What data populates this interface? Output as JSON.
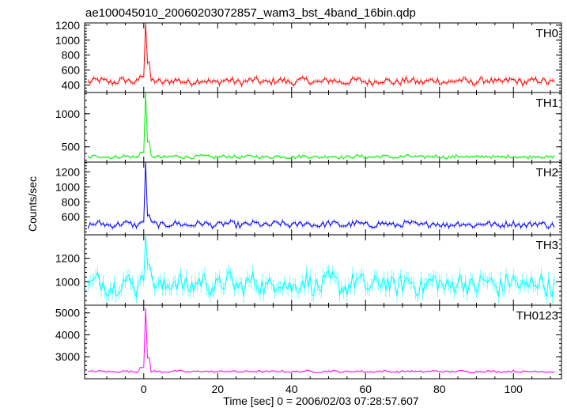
{
  "chart_data": {
    "type": "line",
    "title": "ae100045010_20060203072857_wam3_bst_4band_16bin.qdp",
    "xlabel": "Time [sec] 0 = 2006/02/03 07:28:57.607",
    "ylabel": "Counts/sec",
    "xlim": [
      -16,
      113
    ],
    "x_ticks": [
      "0",
      "20",
      "40",
      "60",
      "80",
      "100"
    ],
    "x_tick_values": [
      0,
      20,
      40,
      60,
      80,
      100
    ],
    "grid": false,
    "panels": [
      {
        "name": "TH0",
        "color": "#ff0000",
        "ylim": [
          300,
          1230
        ],
        "y_ticks": [
          "400",
          "600",
          "800",
          "1000",
          "1200"
        ],
        "y_tick_values": [
          400,
          600,
          800,
          1000,
          1200
        ],
        "baseline": 450,
        "noise": 45,
        "peak": 1230,
        "peak_tail": 700,
        "series": [
          {
            "x": -15,
            "y": 440
          },
          {
            "x": -5,
            "y": 455
          },
          {
            "x": 0,
            "y": 500
          },
          {
            "x": 0.7,
            "y": 1230
          },
          {
            "x": 1.5,
            "y": 700
          },
          {
            "x": 3,
            "y": 460
          },
          {
            "x": 40,
            "y": 450
          },
          {
            "x": 80,
            "y": 455
          },
          {
            "x": 111,
            "y": 450
          }
        ]
      },
      {
        "name": "TH1",
        "color": "#00ee00",
        "ylim": [
          270,
          1320
        ],
        "y_ticks": [
          "500",
          "1000"
        ],
        "y_tick_values": [
          500,
          1000
        ],
        "baseline": 350,
        "noise": 25,
        "peak": 1320,
        "peak_tail": 580,
        "series": [
          {
            "x": -15,
            "y": 350
          },
          {
            "x": 0,
            "y": 360
          },
          {
            "x": 0.7,
            "y": 1320
          },
          {
            "x": 1.5,
            "y": 580
          },
          {
            "x": 3,
            "y": 355
          },
          {
            "x": 30,
            "y": 380
          },
          {
            "x": 60,
            "y": 350
          },
          {
            "x": 111,
            "y": 345
          }
        ]
      },
      {
        "name": "TH2",
        "color": "#0000ff",
        "ylim": [
          360,
          1330
        ],
        "y_ticks": [
          "600",
          "800",
          "1000",
          "1200"
        ],
        "y_tick_values": [
          600,
          800,
          1000,
          1200
        ],
        "baseline": 500,
        "noise": 40,
        "peak": 1330,
        "peak_tail": 620,
        "series": [
          {
            "x": -15,
            "y": 480
          },
          {
            "x": 0,
            "y": 560
          },
          {
            "x": 0.7,
            "y": 1330
          },
          {
            "x": 1.5,
            "y": 620
          },
          {
            "x": 25,
            "y": 600
          },
          {
            "x": 60,
            "y": 500
          },
          {
            "x": 111,
            "y": 520
          }
        ]
      },
      {
        "name": "TH3",
        "color": "#00ffff",
        "ylim": [
          800,
          1400
        ],
        "y_ticks": [
          "1000",
          "1200"
        ],
        "y_tick_values": [
          1000,
          1200
        ],
        "baseline": 980,
        "noise": 90,
        "peak": 1400,
        "peak_tail": 1150,
        "series": [
          {
            "x": -15,
            "y": 950
          },
          {
            "x": 0,
            "y": 1000
          },
          {
            "x": 0.7,
            "y": 1400
          },
          {
            "x": 1.5,
            "y": 1150
          },
          {
            "x": 20,
            "y": 1000
          },
          {
            "x": 72,
            "y": 1150
          },
          {
            "x": 111,
            "y": 980
          }
        ]
      },
      {
        "name": "TH0123",
        "color": "#ff00ff",
        "ylim": [
          2000,
          5350
        ],
        "y_ticks": [
          "3000",
          "4000",
          "5000"
        ],
        "y_tick_values": [
          3000,
          4000,
          5000
        ],
        "baseline": 2330,
        "noise": 45,
        "peak": 5200,
        "peak_tail": 2950,
        "series": [
          {
            "x": -15,
            "y": 2300
          },
          {
            "x": 0,
            "y": 2550
          },
          {
            "x": 0.7,
            "y": 5200
          },
          {
            "x": 1.5,
            "y": 2950
          },
          {
            "x": 3,
            "y": 2350
          },
          {
            "x": 60,
            "y": 2330
          },
          {
            "x": 111,
            "y": 2350
          }
        ]
      }
    ]
  }
}
